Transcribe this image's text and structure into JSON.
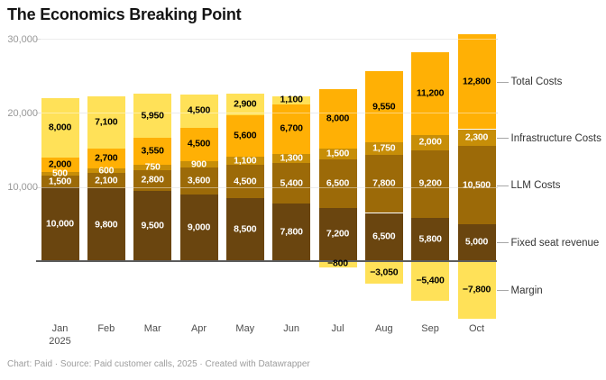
{
  "title": "The Economics Breaking Point",
  "footer": "Chart: Paid · Source: Paid customer calls, 2025 · Created with Datawrapper",
  "chart_data": {
    "type": "bar",
    "stacked": true,
    "title": "The Economics Breaking Point",
    "categories": [
      "Jan",
      "Feb",
      "Mar",
      "Apr",
      "May",
      "Jun",
      "Jul",
      "Aug",
      "Sep",
      "Oct"
    ],
    "category_sublabels": [
      "2025",
      "",
      "",
      "",
      "",
      "",
      "",
      "",
      "",
      ""
    ],
    "series": [
      {
        "name": "Fixed seat revenue",
        "color": "#6a450f",
        "label_color": "#ffffff",
        "values": [
          10000,
          9800,
          9500,
          9000,
          8500,
          7800,
          7200,
          6500,
          5800,
          5000
        ]
      },
      {
        "name": "LLM Costs",
        "color": "#9c6a08",
        "label_color": "#ffffff",
        "values": [
          1500,
          2100,
          2800,
          3600,
          4500,
          5400,
          6500,
          7800,
          9200,
          10500
        ]
      },
      {
        "name": "Infrastructure Costs",
        "color": "#c78e08",
        "label_color": "#ffffff",
        "values": [
          500,
          600,
          750,
          900,
          1100,
          1300,
          1500,
          1750,
          2000,
          2300
        ]
      },
      {
        "name": "Total Costs",
        "color": "#ffb005",
        "label_color": "#000000",
        "values": [
          2000,
          2700,
          3550,
          4500,
          5600,
          6700,
          8000,
          9550,
          11200,
          12800
        ]
      },
      {
        "name": "Margin",
        "color": "#ffe158",
        "label_color": "#000000",
        "values": [
          8000,
          7100,
          5950,
          4500,
          2900,
          1100,
          -800,
          -3050,
          -5400,
          -7800
        ]
      }
    ],
    "legend": [
      "Total Costs",
      "Infrastructure Costs",
      "LLM Costs",
      "Fixed seat revenue",
      "Margin"
    ],
    "legend_position": "right",
    "yticks": [
      {
        "value": 10000,
        "label": "10,000"
      },
      {
        "value": 20000,
        "label": "20,000"
      },
      {
        "value": 30000,
        "label": "30,000"
      }
    ],
    "ylim": [
      -8000,
      31000
    ],
    "grid": true,
    "axis_colors": {
      "gridline": "#dcdcdc",
      "baseline": "#5c5c5c",
      "tick_text": "#979797"
    }
  }
}
